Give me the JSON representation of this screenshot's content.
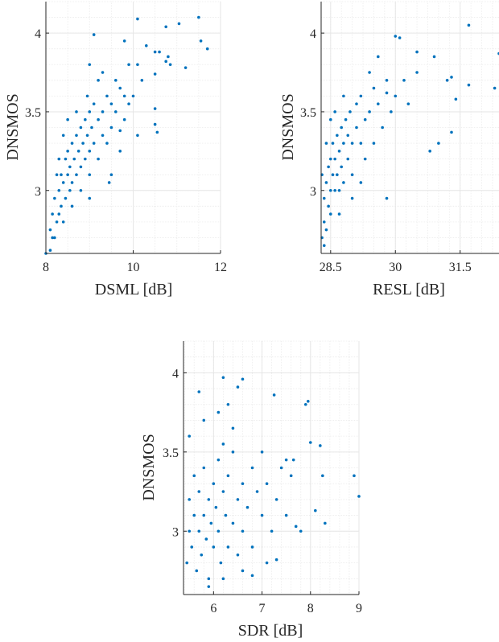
{
  "colors": {
    "marker": "#0072BD",
    "axis": "#262626",
    "grid": "#e6e6e6"
  },
  "chart_data": [
    {
      "type": "scatter",
      "xlabel": "DSML [dB]",
      "ylabel": "DNSMOS",
      "xlim": [
        8,
        12
      ],
      "ylim": [
        2.6,
        4.2
      ],
      "xticks": [
        8,
        10,
        12
      ],
      "xtick_labels": [
        "8",
        "10",
        "12"
      ],
      "yticks": [
        3,
        3.5,
        4
      ],
      "ytick_labels": [
        "3",
        "3.5",
        "4"
      ],
      "grid": true,
      "xminor": 0.5,
      "points": [
        [
          8.1,
          2.75
        ],
        [
          8.15,
          2.85
        ],
        [
          8.2,
          2.7
        ],
        [
          8.2,
          2.95
        ],
        [
          8.25,
          2.8
        ],
        [
          8.3,
          3.0
        ],
        [
          8.3,
          2.85
        ],
        [
          8.35,
          3.1
        ],
        [
          8.35,
          2.9
        ],
        [
          8.4,
          3.05
        ],
        [
          8.4,
          2.8
        ],
        [
          8.45,
          3.2
        ],
        [
          8.45,
          2.95
        ],
        [
          8.5,
          3.1
        ],
        [
          8.5,
          3.25
        ],
        [
          8.55,
          3.0
        ],
        [
          8.55,
          3.15
        ],
        [
          8.6,
          3.3
        ],
        [
          8.6,
          3.05
        ],
        [
          8.65,
          3.2
        ],
        [
          8.7,
          3.1
        ],
        [
          8.7,
          3.35
        ],
        [
          8.75,
          3.25
        ],
        [
          8.8,
          3.15
        ],
        [
          8.8,
          3.4
        ],
        [
          8.85,
          3.3
        ],
        [
          8.9,
          3.2
        ],
        [
          8.9,
          3.45
        ],
        [
          8.95,
          3.35
        ],
        [
          9.0,
          3.25
        ],
        [
          9.0,
          3.5
        ],
        [
          9.05,
          3.4
        ],
        [
          9.1,
          3.3
        ],
        [
          9.1,
          3.55
        ],
        [
          9.2,
          3.45
        ],
        [
          9.2,
          3.2
        ],
        [
          9.3,
          3.5
        ],
        [
          9.3,
          3.35
        ],
        [
          9.4,
          3.6
        ],
        [
          9.4,
          3.3
        ],
        [
          9.5,
          3.55
        ],
        [
          9.5,
          3.4
        ],
        [
          9.6,
          3.5
        ],
        [
          9.7,
          3.65
        ],
        [
          9.8,
          3.45
        ],
        [
          9.9,
          3.55
        ],
        [
          10.0,
          3.6
        ],
        [
          9.2,
          3.7
        ],
        [
          9.3,
          3.75
        ],
        [
          8.5,
          3.45
        ],
        [
          8.3,
          3.2
        ],
        [
          8.6,
          2.9
        ],
        [
          8.8,
          3.0
        ],
        [
          9.0,
          3.1
        ],
        [
          8.25,
          3.1
        ],
        [
          8.15,
          2.7
        ],
        [
          8.4,
          3.35
        ],
        [
          8.7,
          3.5
        ],
        [
          9.6,
          3.7
        ],
        [
          9.45,
          3.05
        ],
        [
          8.95,
          3.6
        ],
        [
          9.7,
          3.38
        ],
        [
          10.1,
          4.09
        ],
        [
          11.5,
          4.1
        ],
        [
          11.05,
          4.06
        ],
        [
          10.75,
          4.04
        ],
        [
          9.1,
          3.99
        ],
        [
          9.8,
          3.95
        ],
        [
          11.55,
          3.95
        ],
        [
          11.7,
          3.9
        ],
        [
          10.3,
          3.92
        ],
        [
          10.6,
          3.88
        ],
        [
          10.5,
          3.88
        ],
        [
          10.8,
          3.85
        ],
        [
          10.75,
          3.82
        ],
        [
          11.2,
          3.78
        ],
        [
          10.85,
          3.8
        ],
        [
          10.5,
          3.74
        ],
        [
          9.0,
          3.8
        ],
        [
          9.9,
          3.8
        ],
        [
          10.1,
          3.8
        ],
        [
          10.5,
          3.52
        ],
        [
          10.5,
          3.42
        ],
        [
          10.55,
          3.37
        ],
        [
          10.1,
          3.35
        ],
        [
          9.7,
          3.25
        ],
        [
          9.0,
          2.95
        ],
        [
          9.8,
          3.6
        ],
        [
          10.2,
          3.7
        ],
        [
          9.5,
          3.1
        ],
        [
          8.0,
          2.6
        ],
        [
          8.1,
          2.62
        ]
      ]
    },
    {
      "type": "scatter",
      "xlabel": "RESL [dB]",
      "ylabel": "DNSMOS",
      "xlim": [
        28.28,
        32.4
      ],
      "ylim": [
        2.6,
        4.2
      ],
      "xticks": [
        28.5,
        30,
        31.5
      ],
      "xtick_labels": [
        "28.5",
        "30",
        "31.5"
      ],
      "yticks": [
        3,
        3.5,
        4
      ],
      "ytick_labels": [
        "3",
        "3.5",
        "4"
      ],
      "grid": true,
      "xminor": 0.25,
      "points": [
        [
          28.3,
          2.7
        ],
        [
          28.35,
          2.8
        ],
        [
          28.35,
          2.95
        ],
        [
          28.4,
          2.75
        ],
        [
          28.4,
          3.05
        ],
        [
          28.45,
          2.9
        ],
        [
          28.45,
          3.15
        ],
        [
          28.5,
          3.0
        ],
        [
          28.5,
          3.2
        ],
        [
          28.5,
          2.85
        ],
        [
          28.55,
          3.1
        ],
        [
          28.55,
          3.3
        ],
        [
          28.6,
          3.0
        ],
        [
          28.6,
          3.2
        ],
        [
          28.65,
          3.35
        ],
        [
          28.65,
          3.1
        ],
        [
          28.7,
          3.25
        ],
        [
          28.7,
          3.0
        ],
        [
          28.75,
          3.4
        ],
        [
          28.75,
          3.15
        ],
        [
          28.8,
          3.3
        ],
        [
          28.8,
          3.05
        ],
        [
          28.85,
          3.45
        ],
        [
          28.9,
          3.2
        ],
        [
          28.9,
          3.35
        ],
        [
          28.95,
          3.5
        ],
        [
          29.0,
          3.3
        ],
        [
          29.0,
          3.1
        ],
        [
          29.1,
          3.4
        ],
        [
          29.1,
          3.55
        ],
        [
          29.2,
          3.3
        ],
        [
          29.2,
          3.6
        ],
        [
          29.3,
          3.45
        ],
        [
          29.3,
          3.2
        ],
        [
          29.4,
          3.5
        ],
        [
          29.5,
          3.65
        ],
        [
          29.5,
          3.3
        ],
        [
          29.6,
          3.55
        ],
        [
          29.7,
          3.4
        ],
        [
          29.8,
          3.7
        ],
        [
          29.9,
          3.5
        ],
        [
          30.0,
          3.6
        ],
        [
          28.4,
          3.3
        ],
        [
          28.6,
          3.5
        ],
        [
          28.3,
          3.1
        ],
        [
          28.5,
          3.45
        ],
        [
          28.8,
          3.6
        ],
        [
          29.0,
          2.95
        ],
        [
          28.7,
          2.85
        ],
        [
          29.2,
          3.05
        ],
        [
          28.35,
          2.65
        ],
        [
          29.4,
          3.75
        ],
        [
          31.7,
          4.05
        ],
        [
          32.4,
          3.87
        ],
        [
          30.0,
          3.98
        ],
        [
          30.1,
          3.97
        ],
        [
          30.5,
          3.88
        ],
        [
          29.6,
          3.85
        ],
        [
          30.9,
          3.85
        ],
        [
          31.7,
          3.67
        ],
        [
          32.3,
          3.65
        ],
        [
          31.3,
          3.72
        ],
        [
          31.2,
          3.7
        ],
        [
          31.4,
          3.58
        ],
        [
          31.3,
          3.37
        ],
        [
          31.0,
          3.3
        ],
        [
          30.8,
          3.25
        ],
        [
          29.8,
          2.95
        ],
        [
          30.5,
          3.75
        ],
        [
          30.2,
          3.7
        ],
        [
          29.8,
          3.62
        ],
        [
          30.3,
          3.55
        ]
      ]
    },
    {
      "type": "scatter",
      "xlabel": "SDR [dB]",
      "ylabel": "DNSMOS",
      "xlim": [
        5.38,
        9
      ],
      "ylim": [
        2.6,
        4.2
      ],
      "xticks": [
        6,
        7,
        8,
        9
      ],
      "xtick_labels": [
        "6",
        "7",
        "8",
        "9"
      ],
      "yticks": [
        3,
        3.5,
        4
      ],
      "ytick_labels": [
        "3",
        "3.5",
        "4"
      ],
      "grid": true,
      "xminor": 0.2,
      "points": [
        [
          5.45,
          2.8
        ],
        [
          5.5,
          3.0
        ],
        [
          5.5,
          3.2
        ],
        [
          5.55,
          2.9
        ],
        [
          5.6,
          3.1
        ],
        [
          5.6,
          3.35
        ],
        [
          5.65,
          2.75
        ],
        [
          5.7,
          3.0
        ],
        [
          5.7,
          3.25
        ],
        [
          5.75,
          2.85
        ],
        [
          5.8,
          3.1
        ],
        [
          5.8,
          3.4
        ],
        [
          5.85,
          2.95
        ],
        [
          5.9,
          3.2
        ],
        [
          5.9,
          2.7
        ],
        [
          5.95,
          3.05
        ],
        [
          6.0,
          3.3
        ],
        [
          6.0,
          2.9
        ],
        [
          6.05,
          3.15
        ],
        [
          6.1,
          3.45
        ],
        [
          6.1,
          3.0
        ],
        [
          6.15,
          2.8
        ],
        [
          6.2,
          3.25
        ],
        [
          6.2,
          3.55
        ],
        [
          6.25,
          3.1
        ],
        [
          6.3,
          2.9
        ],
        [
          6.3,
          3.35
        ],
        [
          6.4,
          3.05
        ],
        [
          6.4,
          3.5
        ],
        [
          6.5,
          3.2
        ],
        [
          6.5,
          2.85
        ],
        [
          6.6,
          3.3
        ],
        [
          6.6,
          3.0
        ],
        [
          6.7,
          3.15
        ],
        [
          6.8,
          3.4
        ],
        [
          6.8,
          2.9
        ],
        [
          6.9,
          3.25
        ],
        [
          7.0,
          3.1
        ],
        [
          7.0,
          3.5
        ],
        [
          7.1,
          3.3
        ],
        [
          7.2,
          3.0
        ],
        [
          7.3,
          3.2
        ],
        [
          7.4,
          3.4
        ],
        [
          7.5,
          3.1
        ],
        [
          5.5,
          3.6
        ],
        [
          5.8,
          3.7
        ],
        [
          6.1,
          3.75
        ],
        [
          6.4,
          3.65
        ],
        [
          6.3,
          3.8
        ],
        [
          5.9,
          2.65
        ],
        [
          6.2,
          2.7
        ],
        [
          6.6,
          2.75
        ],
        [
          6.8,
          2.72
        ],
        [
          7.5,
          3.45
        ],
        [
          8.9,
          3.35
        ],
        [
          9.0,
          3.22
        ],
        [
          8.25,
          3.35
        ],
        [
          8.2,
          3.54
        ],
        [
          8.0,
          3.56
        ],
        [
          7.95,
          3.82
        ],
        [
          7.9,
          3.8
        ],
        [
          7.65,
          3.45
        ],
        [
          7.6,
          3.35
        ],
        [
          8.3,
          3.05
        ],
        [
          8.1,
          3.13
        ],
        [
          7.8,
          3.0
        ],
        [
          7.7,
          3.03
        ],
        [
          6.2,
          3.97
        ],
        [
          6.6,
          3.96
        ],
        [
          6.5,
          3.91
        ],
        [
          5.7,
          3.88
        ],
        [
          7.25,
          3.86
        ],
        [
          7.1,
          2.8
        ],
        [
          7.3,
          2.82
        ]
      ]
    }
  ]
}
